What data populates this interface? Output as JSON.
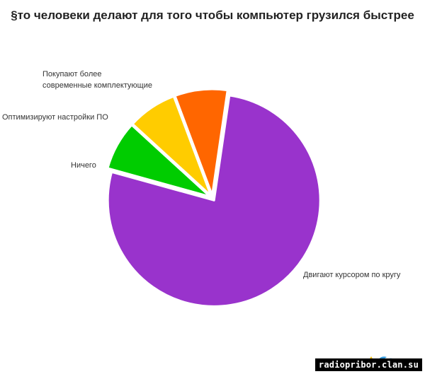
{
  "chart_data": {
    "type": "pie",
    "title": "§то человеки делают для того чтобы компьютер грузился быстрее",
    "slices": [
      {
        "label": "Двигают курсором по кругу",
        "value": 77,
        "color": "#9933cc"
      },
      {
        "label": "Ничего",
        "value": 7.5,
        "color": "#00cc00"
      },
      {
        "label": "Оптимизируют настройки ПО",
        "value": 7.5,
        "color": "#ffcc00"
      },
      {
        "label": "Покупают более современные комплектующие",
        "value": 8,
        "color": "#ff6600"
      }
    ]
  },
  "watermark": "radiopribor.clan.su"
}
